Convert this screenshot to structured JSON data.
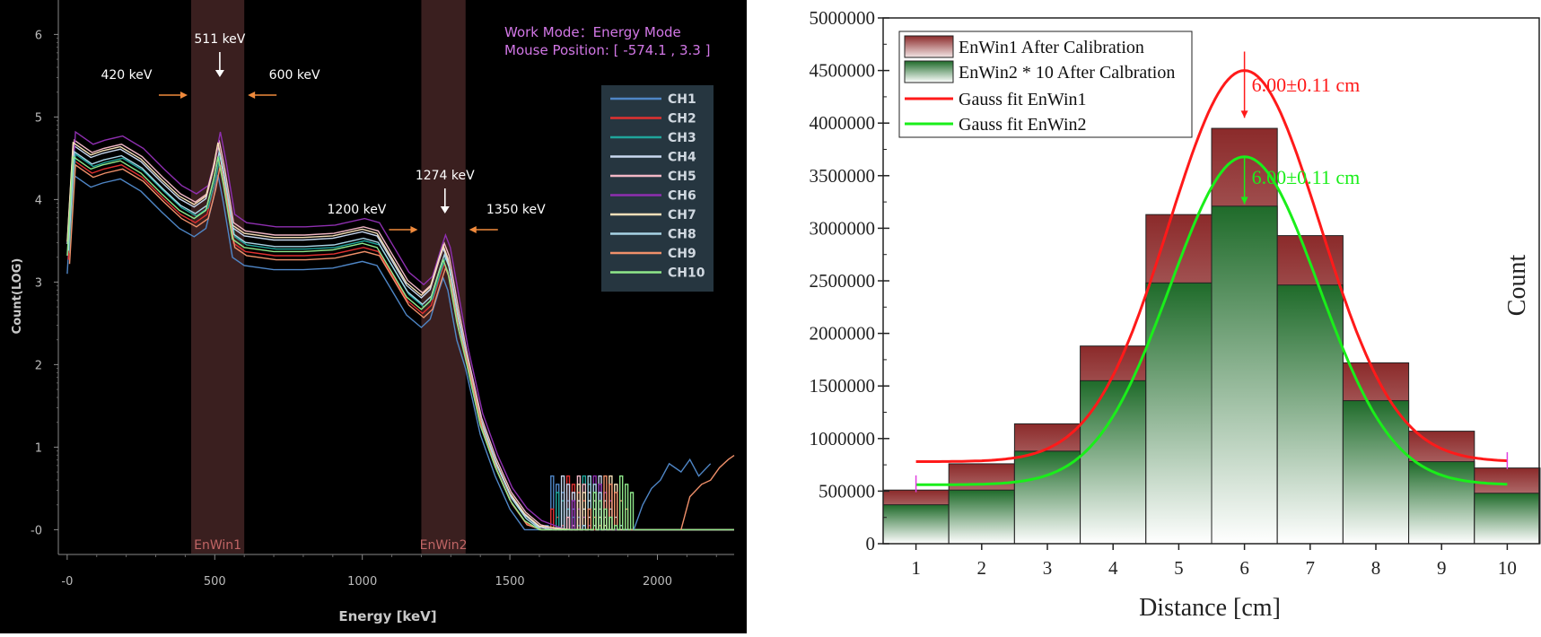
{
  "chart_data": [
    {
      "type": "line",
      "xlabel": "Energy [keV]",
      "ylabel": "Count(LOG)",
      "xlim": [
        -30,
        2260
      ],
      "ylim": [
        -0.3,
        6.2
      ],
      "yscale": "log (decades)",
      "x_ticks": [
        {
          "v": 0,
          "label": "-0"
        },
        {
          "v": 500,
          "label": "500"
        },
        {
          "v": 1000,
          "label": "1000"
        },
        {
          "v": 1500,
          "label": "1500"
        },
        {
          "v": 2000,
          "label": "2000"
        }
      ],
      "y_ticks": [
        {
          "v": 0,
          "label": "-0"
        },
        {
          "v": 1,
          "label": "1"
        },
        {
          "v": 2,
          "label": "2"
        },
        {
          "v": 3,
          "label": "3"
        },
        {
          "v": 4,
          "label": "4"
        },
        {
          "v": 5,
          "label": "5"
        },
        {
          "v": 6,
          "label": "6"
        }
      ],
      "grid": false,
      "background": "#000000",
      "status_text": {
        "work_mode": "Work Mode：Energy Mode",
        "mouse_position": "Mouse Position: [ -574.1 , 3.3 ]"
      },
      "energy_windows": [
        {
          "name": "EnWin1",
          "range": [
            420,
            600
          ],
          "color": "#3a1f1f"
        },
        {
          "name": "EnWin2",
          "range": [
            1200,
            1350
          ],
          "color": "#3a1f1f"
        }
      ],
      "annotations": [
        {
          "text": "511 keV",
          "x": 511,
          "arrow": "down",
          "arrow_color": "#ffffff"
        },
        {
          "text": "420 keV",
          "x": 420,
          "arrow": "right",
          "arrow_color": "#f08a3c"
        },
        {
          "text": "600 keV",
          "x": 600,
          "arrow": "left",
          "arrow_color": "#f08a3c"
        },
        {
          "text": "1274 keV",
          "x": 1274,
          "arrow": "down",
          "arrow_color": "#ffffff"
        },
        {
          "text": "1200 keV",
          "x": 1200,
          "arrow": "right",
          "arrow_color": "#f08a3c"
        },
        {
          "text": "1350 keV",
          "x": 1350,
          "arrow": "left",
          "arrow_color": "#f08a3c"
        }
      ],
      "legend_position": "top-right",
      "series": [
        {
          "name": "CH1",
          "color": "#4f86c6",
          "offset": -0.3
        },
        {
          "name": "CH2",
          "color": "#e03030",
          "offset": -0.13
        },
        {
          "name": "CH3",
          "color": "#1fa59b",
          "offset": -0.05
        },
        {
          "name": "CH4",
          "color": "#c8d8f0",
          "offset": 0.06
        },
        {
          "name": "CH5",
          "color": "#f2b8c6",
          "offset": 0.12
        },
        {
          "name": "CH6",
          "color": "#8e2fb0",
          "offset": 0.22
        },
        {
          "name": "CH7",
          "color": "#f7e0b8",
          "offset": 0.09
        },
        {
          "name": "CH8",
          "color": "#a8d4e6",
          "offset": -0.02
        },
        {
          "name": "CH9",
          "color": "#f0906a",
          "offset": -0.18
        },
        {
          "name": "CH10",
          "color": "#8fe88a",
          "offset": -0.08
        }
      ],
      "base_curve": {
        "x": [
          0,
          20,
          40,
          80,
          120,
          180,
          250,
          320,
          380,
          430,
          470,
          495,
          511,
          530,
          560,
          600,
          700,
          800,
          900,
          1000,
          1050,
          1100,
          1150,
          1200,
          1230,
          1260,
          1274,
          1290,
          1320,
          1350,
          1400,
          1450,
          1500,
          1550,
          1600
        ],
        "y": [
          3.4,
          4.6,
          4.55,
          4.45,
          4.5,
          4.55,
          4.4,
          4.15,
          3.95,
          3.85,
          3.95,
          4.3,
          4.6,
          4.25,
          3.6,
          3.5,
          3.45,
          3.45,
          3.47,
          3.55,
          3.5,
          3.2,
          2.9,
          2.75,
          2.85,
          3.2,
          3.35,
          3.2,
          2.6,
          2.1,
          1.3,
          0.8,
          0.4,
          0.15,
          0.0
        ]
      }
    },
    {
      "type": "bar",
      "xlabel": "Distance [cm]",
      "ylabel": "Count",
      "categories": [
        "1",
        "2",
        "3",
        "4",
        "5",
        "6",
        "7",
        "8",
        "9",
        "10"
      ],
      "x": [
        1,
        2,
        3,
        4,
        5,
        6,
        7,
        8,
        9,
        10
      ],
      "ylim": [
        0,
        5000000
      ],
      "y_ticks": [
        0,
        500000,
        1000000,
        1500000,
        2000000,
        2500000,
        3000000,
        3500000,
        4000000,
        4500000,
        5000000
      ],
      "grid": false,
      "legend_position": "top-left",
      "series": [
        {
          "name": "EnWin1 After Calibration",
          "kind": "bar",
          "color": "#8b2a2a",
          "values": [
            510000,
            760000,
            1140000,
            1880000,
            3130000,
            3950000,
            2930000,
            1720000,
            1070000,
            720000
          ]
        },
        {
          "name": "EnWin2 * 10 After Calbration",
          "kind": "bar",
          "color": "#1f6b2a",
          "values": [
            370000,
            510000,
            880000,
            1550000,
            2480000,
            3210000,
            2460000,
            1360000,
            780000,
            480000
          ]
        },
        {
          "name": "Gauss fit EnWin1",
          "kind": "line",
          "color": "#ff1a1a",
          "params": {
            "baseline": 780000,
            "amplitude": 3720000,
            "center": 6.0,
            "sigma": 1.15
          }
        },
        {
          "name": "Gauss fit EnWin2",
          "kind": "line",
          "color": "#1aee1a",
          "params": {
            "baseline": 560000,
            "amplitude": 3120000,
            "center": 6.0,
            "sigma": 1.13
          }
        }
      ],
      "annotations": [
        {
          "text": "6.00±0.11 cm",
          "color": "#ff1a1a",
          "x": 6.0,
          "y": 4500000
        },
        {
          "text": "6.00±0.11 cm",
          "color": "#1aee1a",
          "x": 6.0,
          "y": 3680000
        }
      ]
    }
  ]
}
